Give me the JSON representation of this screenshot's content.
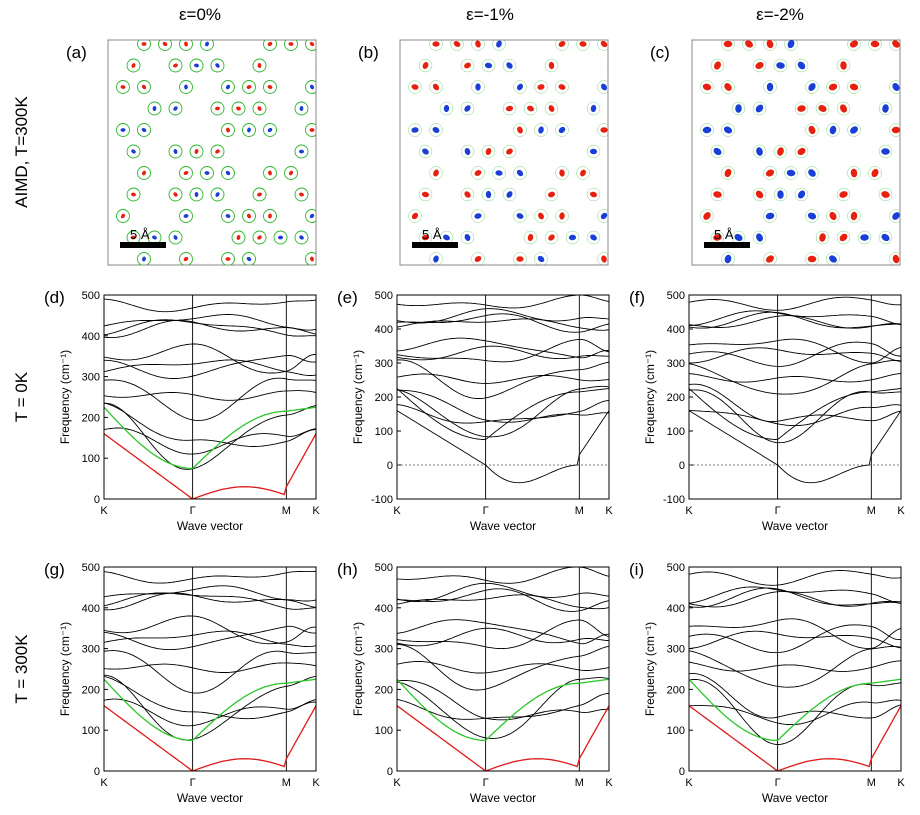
{
  "columns": [
    "ε=0%",
    "ε=-1%",
    "ε=-2%"
  ],
  "row_labels": [
    "AIMD, T=300K",
    "T = 0K",
    "T = 300K"
  ],
  "scale_bar": "5 Å",
  "colors": {
    "red": "#e8210f",
    "blue": "#1a3fd6",
    "green": "#2fb52f",
    "frame": "#888888",
    "band": "#000000",
    "acoustic_low": "#e01a1a",
    "acoustic_high": "#2bc72b"
  },
  "panels": [
    {
      "letter": "(a)",
      "type": "structure",
      "strain": "0%",
      "sites_variant": 0
    },
    {
      "letter": "(b)",
      "type": "structure",
      "strain": "-1%",
      "sites_variant": 1
    },
    {
      "letter": "(c)",
      "type": "structure",
      "strain": "-2%",
      "sites_variant": 2
    }
  ],
  "chart_data": [
    {
      "letter": "(d)",
      "type": "line",
      "temperature": "0K",
      "strain": "0%",
      "ylabel": "Frequency (cm⁻¹)",
      "xlabel": "Wave vector",
      "xticks": [
        "K",
        "Γ",
        "M",
        "K"
      ],
      "ylim": [
        0,
        500
      ],
      "yticks": [
        0,
        100,
        200,
        300,
        400,
        500
      ],
      "imaginary": false
    },
    {
      "letter": "(e)",
      "type": "line",
      "temperature": "0K",
      "strain": "-1%",
      "ylabel": "Frequency (cm⁻¹)",
      "xlabel": "Wave vector",
      "xticks": [
        "K",
        "Γ",
        "M",
        "K"
      ],
      "ylim": [
        -100,
        500
      ],
      "yticks": [
        -100,
        0,
        100,
        200,
        300,
        400,
        500
      ],
      "imaginary": true
    },
    {
      "letter": "(f)",
      "type": "line",
      "temperature": "0K",
      "strain": "-2%",
      "ylabel": "Frequency (cm⁻¹)",
      "xlabel": "Wave vector",
      "xticks": [
        "K",
        "Γ",
        "M",
        "K"
      ],
      "ylim": [
        -100,
        500
      ],
      "yticks": [
        -100,
        0,
        100,
        200,
        300,
        400,
        500
      ],
      "imaginary": true
    },
    {
      "letter": "(g)",
      "type": "line",
      "temperature": "300K",
      "strain": "0%",
      "ylabel": "Frequency (cm⁻¹)",
      "xlabel": "Wave vector",
      "xticks": [
        "K",
        "Γ",
        "M",
        "K"
      ],
      "ylim": [
        0,
        500
      ],
      "yticks": [
        0,
        100,
        200,
        300,
        400,
        500
      ],
      "imaginary": false
    },
    {
      "letter": "(h)",
      "type": "line",
      "temperature": "300K",
      "strain": "-1%",
      "ylabel": "Frequency (cm⁻¹)",
      "xlabel": "Wave vector",
      "xticks": [
        "K",
        "Γ",
        "M",
        "K"
      ],
      "ylim": [
        0,
        500
      ],
      "yticks": [
        0,
        100,
        200,
        300,
        400,
        500
      ],
      "imaginary": false
    },
    {
      "letter": "(i)",
      "type": "line",
      "temperature": "300K",
      "strain": "-2%",
      "ylabel": "Frequency (cm⁻¹)",
      "xlabel": "Wave vector",
      "xticks": [
        "K",
        "Γ",
        "M",
        "K"
      ],
      "ylim": [
        0,
        500
      ],
      "yticks": [
        0,
        100,
        200,
        300,
        400,
        500
      ],
      "imaginary": false
    }
  ]
}
